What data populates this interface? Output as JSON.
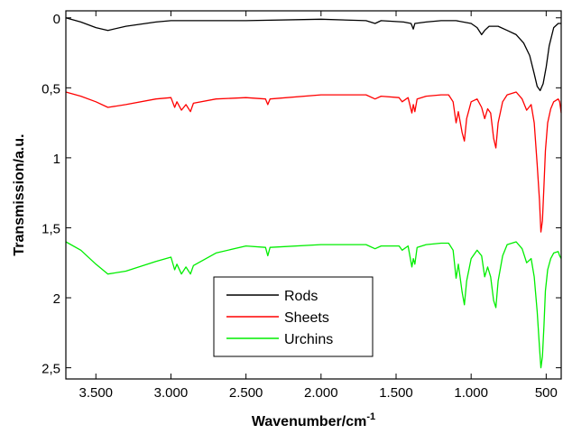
{
  "chart_data": {
    "type": "line",
    "title": "",
    "xlabel": "Wavenumber/cm",
    "xlabel_superscript": "-1",
    "ylabel": "Transmission/a.u.",
    "xlim": [
      3700,
      400
    ],
    "ylim": [
      2.58,
      -0.05
    ],
    "x_reversed": true,
    "y_reversed": true,
    "x_ticks": [
      3500,
      3000,
      2500,
      2000,
      1500,
      1000,
      500
    ],
    "x_tick_labels": [
      "3.500",
      "3.000",
      "2.500",
      "2.000",
      "1.500",
      "1.000",
      "500"
    ],
    "y_ticks": [
      0,
      0.5,
      1,
      1.5,
      2,
      2.5
    ],
    "y_tick_labels": [
      "0",
      "0,5",
      "1",
      "1,5",
      "2",
      "2,5"
    ],
    "grid": false,
    "legend_position": "bottom-center",
    "series": [
      {
        "name": "Rods",
        "color": "#000000",
        "points": [
          [
            3700,
            0.0
          ],
          [
            3600,
            0.03
          ],
          [
            3500,
            0.07
          ],
          [
            3420,
            0.09
          ],
          [
            3300,
            0.06
          ],
          [
            3100,
            0.03
          ],
          [
            3000,
            0.02
          ],
          [
            2900,
            0.02
          ],
          [
            2500,
            0.02
          ],
          [
            2000,
            0.01
          ],
          [
            1700,
            0.02
          ],
          [
            1640,
            0.04
          ],
          [
            1600,
            0.02
          ],
          [
            1450,
            0.03
          ],
          [
            1400,
            0.04
          ],
          [
            1385,
            0.08
          ],
          [
            1375,
            0.04
          ],
          [
            1300,
            0.03
          ],
          [
            1200,
            0.02
          ],
          [
            1100,
            0.02
          ],
          [
            1000,
            0.04
          ],
          [
            960,
            0.07
          ],
          [
            930,
            0.12
          ],
          [
            910,
            0.09
          ],
          [
            880,
            0.06
          ],
          [
            820,
            0.06
          ],
          [
            760,
            0.09
          ],
          [
            700,
            0.12
          ],
          [
            650,
            0.18
          ],
          [
            610,
            0.27
          ],
          [
            580,
            0.4
          ],
          [
            560,
            0.49
          ],
          [
            540,
            0.52
          ],
          [
            520,
            0.47
          ],
          [
            500,
            0.35
          ],
          [
            480,
            0.2
          ],
          [
            450,
            0.07
          ],
          [
            420,
            0.04
          ],
          [
            400,
            0.04
          ]
        ]
      },
      {
        "name": "Sheets",
        "color": "#ff0000",
        "points": [
          [
            3700,
            0.53
          ],
          [
            3600,
            0.56
          ],
          [
            3500,
            0.6
          ],
          [
            3420,
            0.64
          ],
          [
            3300,
            0.62
          ],
          [
            3100,
            0.58
          ],
          [
            3000,
            0.57
          ],
          [
            2975,
            0.64
          ],
          [
            2960,
            0.6
          ],
          [
            2930,
            0.66
          ],
          [
            2900,
            0.62
          ],
          [
            2870,
            0.67
          ],
          [
            2850,
            0.61
          ],
          [
            2700,
            0.58
          ],
          [
            2500,
            0.57
          ],
          [
            2370,
            0.58
          ],
          [
            2355,
            0.62
          ],
          [
            2340,
            0.58
          ],
          [
            2000,
            0.55
          ],
          [
            1700,
            0.55
          ],
          [
            1640,
            0.58
          ],
          [
            1600,
            0.56
          ],
          [
            1480,
            0.57
          ],
          [
            1460,
            0.6
          ],
          [
            1420,
            0.57
          ],
          [
            1395,
            0.68
          ],
          [
            1385,
            0.62
          ],
          [
            1375,
            0.67
          ],
          [
            1360,
            0.58
          ],
          [
            1300,
            0.56
          ],
          [
            1200,
            0.55
          ],
          [
            1150,
            0.55
          ],
          [
            1120,
            0.6
          ],
          [
            1100,
            0.75
          ],
          [
            1085,
            0.67
          ],
          [
            1060,
            0.82
          ],
          [
            1045,
            0.88
          ],
          [
            1030,
            0.72
          ],
          [
            1000,
            0.6
          ],
          [
            960,
            0.58
          ],
          [
            930,
            0.64
          ],
          [
            910,
            0.72
          ],
          [
            890,
            0.65
          ],
          [
            870,
            0.68
          ],
          [
            850,
            0.86
          ],
          [
            835,
            0.93
          ],
          [
            820,
            0.75
          ],
          [
            790,
            0.6
          ],
          [
            760,
            0.55
          ],
          [
            700,
            0.53
          ],
          [
            660,
            0.58
          ],
          [
            630,
            0.66
          ],
          [
            600,
            0.62
          ],
          [
            580,
            0.75
          ],
          [
            560,
            1.05
          ],
          [
            545,
            1.3
          ],
          [
            535,
            1.53
          ],
          [
            525,
            1.45
          ],
          [
            515,
            1.2
          ],
          [
            505,
            0.95
          ],
          [
            490,
            0.75
          ],
          [
            470,
            0.65
          ],
          [
            450,
            0.6
          ],
          [
            420,
            0.58
          ],
          [
            410,
            0.6
          ],
          [
            400,
            0.68
          ]
        ]
      },
      {
        "name": "Urchins",
        "color": "#00ee00",
        "points": [
          [
            3700,
            1.6
          ],
          [
            3600,
            1.66
          ],
          [
            3500,
            1.76
          ],
          [
            3420,
            1.83
          ],
          [
            3300,
            1.81
          ],
          [
            3100,
            1.74
          ],
          [
            3000,
            1.71
          ],
          [
            2975,
            1.8
          ],
          [
            2960,
            1.76
          ],
          [
            2930,
            1.83
          ],
          [
            2900,
            1.78
          ],
          [
            2870,
            1.83
          ],
          [
            2850,
            1.77
          ],
          [
            2700,
            1.68
          ],
          [
            2500,
            1.63
          ],
          [
            2370,
            1.64
          ],
          [
            2355,
            1.7
          ],
          [
            2340,
            1.64
          ],
          [
            2000,
            1.62
          ],
          [
            1700,
            1.62
          ],
          [
            1640,
            1.65
          ],
          [
            1600,
            1.63
          ],
          [
            1480,
            1.63
          ],
          [
            1460,
            1.66
          ],
          [
            1420,
            1.63
          ],
          [
            1395,
            1.78
          ],
          [
            1385,
            1.72
          ],
          [
            1375,
            1.76
          ],
          [
            1360,
            1.64
          ],
          [
            1300,
            1.62
          ],
          [
            1200,
            1.61
          ],
          [
            1150,
            1.61
          ],
          [
            1120,
            1.66
          ],
          [
            1100,
            1.86
          ],
          [
            1085,
            1.76
          ],
          [
            1060,
            1.96
          ],
          [
            1045,
            2.05
          ],
          [
            1030,
            1.88
          ],
          [
            1000,
            1.72
          ],
          [
            960,
            1.66
          ],
          [
            930,
            1.7
          ],
          [
            910,
            1.85
          ],
          [
            890,
            1.78
          ],
          [
            870,
            1.85
          ],
          [
            850,
            2.02
          ],
          [
            835,
            2.07
          ],
          [
            820,
            1.88
          ],
          [
            790,
            1.7
          ],
          [
            760,
            1.62
          ],
          [
            700,
            1.6
          ],
          [
            660,
            1.65
          ],
          [
            630,
            1.75
          ],
          [
            600,
            1.72
          ],
          [
            580,
            1.85
          ],
          [
            560,
            2.1
          ],
          [
            545,
            2.35
          ],
          [
            535,
            2.5
          ],
          [
            525,
            2.42
          ],
          [
            515,
            2.2
          ],
          [
            505,
            1.95
          ],
          [
            490,
            1.8
          ],
          [
            470,
            1.72
          ],
          [
            450,
            1.68
          ],
          [
            420,
            1.67
          ],
          [
            410,
            1.7
          ],
          [
            400,
            1.72
          ]
        ]
      }
    ]
  }
}
